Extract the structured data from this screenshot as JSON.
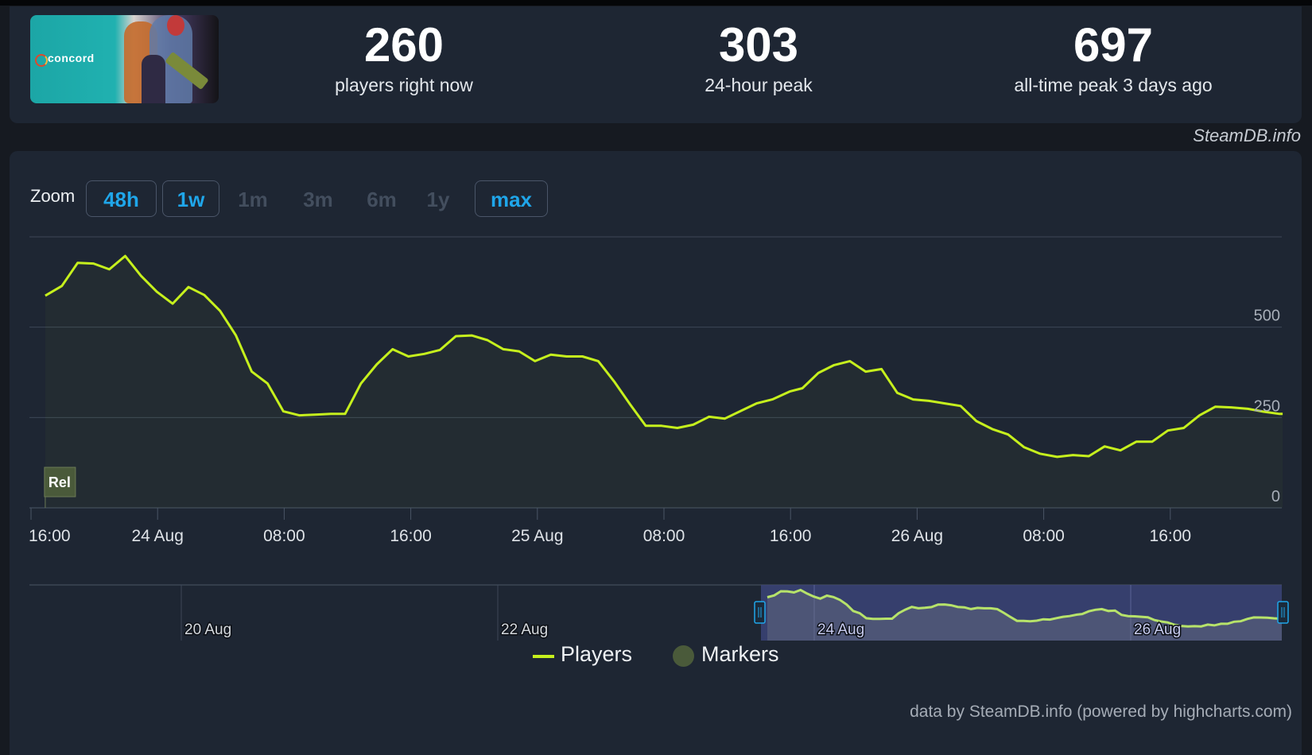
{
  "header": {
    "game_image_alt": "Concord",
    "game_logo_text": "concord",
    "brand": "SteamDB.info",
    "stats": [
      {
        "value": "260",
        "label": "players right now"
      },
      {
        "value": "303",
        "label": "24-hour peak"
      },
      {
        "value": "697",
        "label": "all-time peak 3 days ago"
      }
    ]
  },
  "zoom_bar": {
    "label": "Zoom",
    "buttons": [
      {
        "label": "48h",
        "state": "active"
      },
      {
        "label": "1w",
        "state": "active"
      },
      {
        "label": "1m",
        "state": "disabled"
      },
      {
        "label": "3m",
        "state": "disabled"
      },
      {
        "label": "6m",
        "state": "disabled"
      },
      {
        "label": "1y",
        "state": "disabled"
      },
      {
        "label": "max",
        "state": "active"
      }
    ]
  },
  "legend": {
    "players": "Players",
    "markers": "Markers"
  },
  "credits": "data by SteamDB.info (powered by highcharts.com)",
  "colors": {
    "line": "#c6f01d",
    "accent": "#1fa6ea",
    "marker": "#4a5a3a",
    "navigator_mask": "#3b4478"
  },
  "chart_data": {
    "type": "line",
    "title": "",
    "xlabel": "",
    "ylabel": "Players",
    "ylim": [
      0,
      750
    ],
    "grid": true,
    "legend_position": "bottom-center",
    "y_ticks": [
      0,
      250,
      500
    ],
    "x_tick_labels": [
      "16:00",
      "24 Aug",
      "08:00",
      "16:00",
      "25 Aug",
      "08:00",
      "16:00",
      "26 Aug",
      "08:00",
      "16:00"
    ],
    "navigator_tick_labels": [
      "20 Aug",
      "22 Aug",
      "24 Aug",
      "26 Aug"
    ],
    "annotations": [
      {
        "label": "Rel",
        "x_hours": 1,
        "type": "flag-marker"
      }
    ],
    "x_start": "23 Aug 16:00",
    "x_unit": "hours since 23 Aug 16:00",
    "series": [
      {
        "name": "Players",
        "x": [
          0.9,
          1.95,
          2.95,
          3.95,
          4.95,
          5.95,
          6.95,
          7.95,
          8.95,
          9.95,
          10.95,
          11.95,
          12.95,
          13.95,
          14.95,
          15.95,
          16.95,
          17.95,
          18.95,
          19.85,
          20.85,
          21.85,
          22.85,
          23.05,
          23.85,
          24.85,
          25.85,
          26.85,
          27.85,
          28.85,
          29.85,
          30.85,
          31.85,
          32.85,
          33.85,
          34.85,
          35.85,
          36.85,
          37.85,
          38.85,
          39.85,
          40.85,
          41.85,
          42.85,
          43.85,
          44.85,
          45.85,
          46.85,
          47.95,
          48.75,
          49.75,
          50.75,
          51.75,
          52.75,
          53.75,
          54.75,
          55.75,
          56.75,
          57.75,
          58.75,
          59.75,
          60.75,
          61.75,
          62.75,
          63.75,
          64.85,
          65.85,
          66.85,
          67.85,
          68.85,
          69.85,
          70.85,
          71.85,
          72.85,
          73.85,
          74.85,
          75.85,
          76.9,
          77.9,
          78.9,
          79.1
        ],
        "values": [
          587,
          614,
          678,
          676,
          660,
          697,
          642,
          598,
          565,
          611,
          589,
          545,
          477,
          377,
          344,
          267,
          256,
          258,
          260,
          260,
          344,
          397,
          439,
          435,
          419,
          426,
          437,
          475,
          477,
          464,
          439,
          433,
          406,
          424,
          419,
          419,
          406,
          350,
          287,
          227,
          227,
          221,
          230,
          252,
          247,
          268,
          289,
          300,
          322,
          331,
          373,
          395,
          406,
          377,
          384,
          318,
          300,
          296,
          289,
          282,
          240,
          218,
          203,
          168,
          150,
          141,
          146,
          143,
          170,
          159,
          183,
          183,
          214,
          221,
          256,
          280,
          278,
          274,
          266,
          260,
          260
        ]
      },
      {
        "name": "Markers",
        "points": [
          {
            "x": 0.9,
            "label": "Rel"
          }
        ]
      }
    ]
  }
}
